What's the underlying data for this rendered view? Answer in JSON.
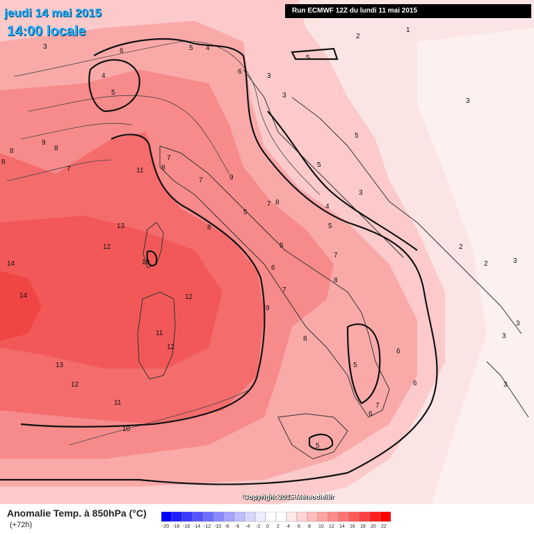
{
  "header": {
    "date_line": "jeudi 14 mai 2015",
    "time_line": "14:00 locale",
    "run_line": "Run ECMWF 12Z du lundi 11 mai 2015"
  },
  "footer": {
    "variable": "Anomalie Temp. à 850hPa (°C)",
    "lead_time": "(+72h)",
    "copyright": "Copyright 2015 Meteociel.fr"
  },
  "legend": {
    "ticks": [
      "-20",
      "-18",
      "-16",
      "-14",
      "-12",
      "-10",
      "-8",
      "-6",
      "-4",
      "-2",
      "0",
      "2",
      "4",
      "6",
      "8",
      "10",
      "12",
      "14",
      "16",
      "18",
      "20",
      "22"
    ],
    "colors": [
      "#0000ff",
      "#2020ff",
      "#3a3aff",
      "#5555ff",
      "#6f6fff",
      "#8a8aff",
      "#a4a4ff",
      "#bebeff",
      "#d8d8ff",
      "#ececff",
      "#ffffff",
      "#ffffff",
      "#ffe8e8",
      "#ffd4d4",
      "#ffbcbc",
      "#ffa4a4",
      "#ff8c8c",
      "#ff7474",
      "#ff5a5a",
      "#ff4040",
      "#ff2020",
      "#ff0000"
    ]
  },
  "contour_labels": [
    "1",
    "2",
    "3",
    "4",
    "5",
    "6",
    "7",
    "8",
    "9",
    "10",
    "11",
    "12",
    "13",
    "14"
  ]
}
